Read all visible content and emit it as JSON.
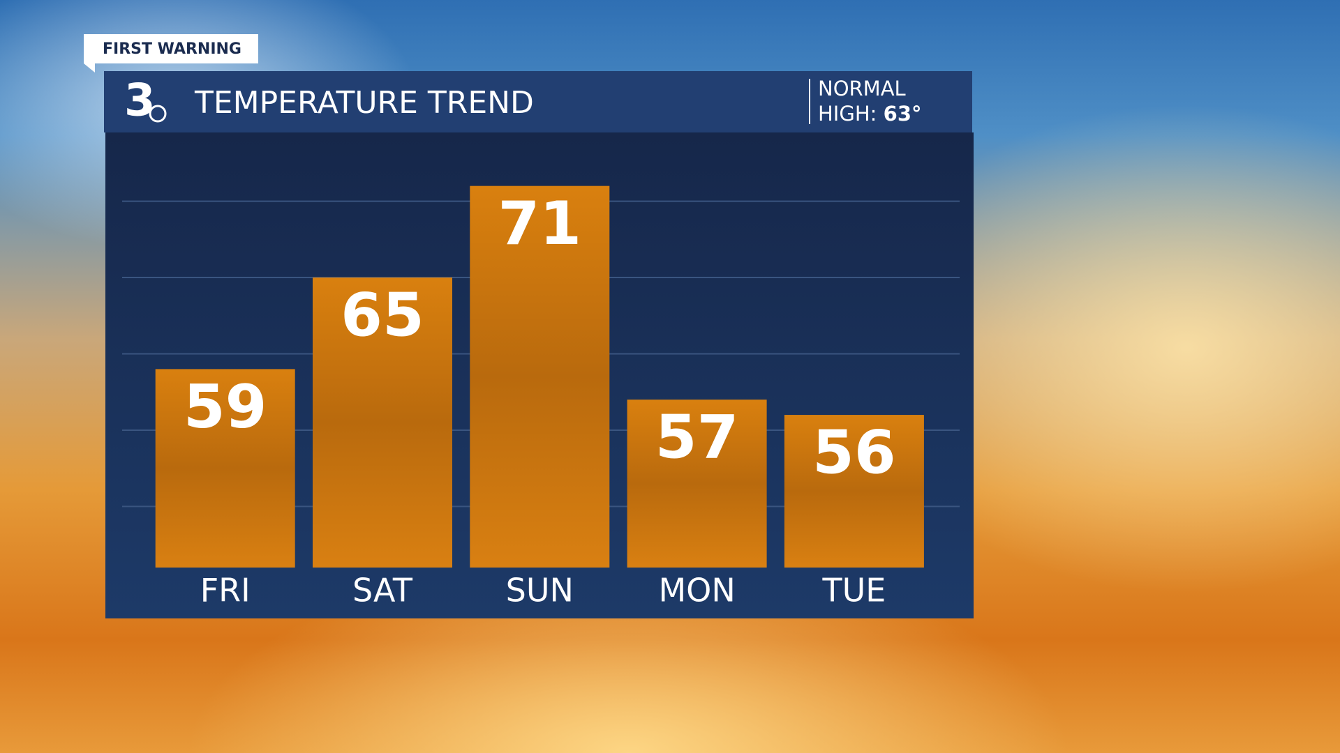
{
  "chart_data": {
    "type": "bar",
    "tag": "FIRST WARNING",
    "logo": "3",
    "title": "TEMPERATURE TREND",
    "normal_label_1": "NORMAL",
    "normal_label_2": "HIGH:",
    "normal_value": "63°",
    "categories": [
      "FRI",
      "SAT",
      "SUN",
      "MON",
      "TUE"
    ],
    "values": [
      59,
      65,
      71,
      57,
      56
    ],
    "color": "#d47a10",
    "ylim": [
      46,
      74
    ],
    "yticks": [
      50,
      55,
      60,
      65,
      70
    ],
    "grid": true
  }
}
